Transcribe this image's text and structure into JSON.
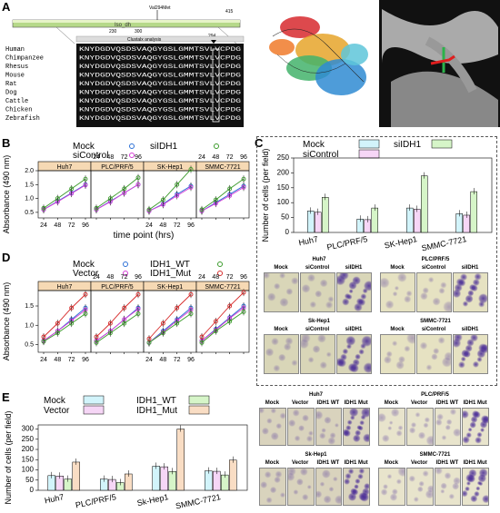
{
  "panels": {
    "A": "A",
    "B": "B",
    "C": "C",
    "D": "D",
    "E": "E"
  },
  "panel_a": {
    "domain_label": "Iso_dh",
    "mutation_label": "Val294Met",
    "length_label": "415",
    "pos_start": "230",
    "pos_mid": "300",
    "pos_end": "294",
    "clustal_title": "Clustalx analysis",
    "species": [
      "Human",
      "Chimpanzee",
      "Rhesus",
      "Mouse",
      "Rat",
      "Dog",
      "Cattle",
      "Chicken",
      "Zebrafish"
    ],
    "sequences": [
      "KNYDGDVQSDSVAQGYGSLGMMTSVLVCPDG",
      "KNYDGDVQSDSVAQGYGSLGMMTSVLVCPDG",
      "KNYDGDVQSDSVAQGYGSLGMMTSVLVCPDG",
      "KNYDGDVQSDSVAQGYGSLGMMTSVLVCPDG",
      "KNYDGDVQSDSVAQGYGSLGMMTSVLVCPDG",
      "KNYDGDVQSDSVAQGYGSLGMMTSVLVCPDG",
      "KNYDGDVQSDSVAQGYGSLGMMTSVLVCPDG",
      "KNYDGDVQSDSVAQGYGSLGMMTSVLVCPDG",
      "KNYDGDVQSDSVAQGYGSLGMMTSVLVCPDG"
    ]
  },
  "colors": {
    "mock": "#d2f4fb",
    "sicontrol": "#f6d6f6",
    "siidh1": "#d6f5c8",
    "idh1_mut": "#f9ddc4",
    "bar_stroke": "#000",
    "strip": "#f6d9b4",
    "line_a": "#2a6fd6",
    "line_b": "#d63cd6",
    "line_c": "#3a9a2a",
    "line_d": "#d62a2a"
  },
  "chart_data": [
    {
      "id": "B",
      "type": "line",
      "legend": [
        "Mock",
        "siControl",
        "siIDH1"
      ],
      "facets": [
        "Huh7",
        "PLC/PRF/5",
        "SK-Hep1",
        "SMMC-7721"
      ],
      "x": [
        "24",
        "48",
        "72",
        "96"
      ],
      "top_ticks": [
        "24",
        "48",
        "72",
        "96"
      ],
      "yticks": [
        "0.5",
        "1.0",
        "1.5",
        "2.0"
      ],
      "ylim": [
        0.3,
        2.0
      ],
      "xlabel": "time point (hrs)",
      "ylabel": "Absorbance (490 nm)",
      "series": [
        {
          "name": "Mock",
          "values": [
            [
              0.6,
              0.9,
              1.2,
              1.5
            ],
            [
              0.6,
              0.9,
              1.2,
              1.5
            ],
            [
              0.55,
              0.8,
              1.15,
              1.45
            ],
            [
              0.55,
              0.85,
              1.15,
              1.45
            ]
          ]
        },
        {
          "name": "siControl",
          "values": [
            [
              0.6,
              0.88,
              1.18,
              1.48
            ],
            [
              0.6,
              0.88,
              1.2,
              1.5
            ],
            [
              0.55,
              0.78,
              1.1,
              1.4
            ],
            [
              0.55,
              0.82,
              1.1,
              1.4
            ]
          ]
        },
        {
          "name": "siIDH1",
          "values": [
            [
              0.65,
              1.0,
              1.35,
              1.7
            ],
            [
              0.65,
              1.0,
              1.35,
              1.75
            ],
            [
              0.6,
              0.95,
              1.5,
              2.05
            ],
            [
              0.6,
              0.95,
              1.35,
              1.7
            ]
          ]
        }
      ]
    },
    {
      "id": "C",
      "type": "bar",
      "legend": [
        "Mock",
        "siControl",
        "siIDH1"
      ],
      "categories": [
        "Huh7",
        "PLC/PRF/5",
        "SK-Hep1",
        "SMMC-7721"
      ],
      "yticks": [
        "0",
        "50",
        "100",
        "150",
        "200",
        "250"
      ],
      "ylim": [
        0,
        250
      ],
      "ylabel": "Number of cells (per field)",
      "series": [
        {
          "name": "Mock",
          "values": [
            72,
            45,
            82,
            63
          ]
        },
        {
          "name": "siControl",
          "values": [
            68,
            43,
            78,
            58
          ]
        },
        {
          "name": "siIDH1",
          "values": [
            118,
            82,
            190,
            137
          ]
        }
      ]
    },
    {
      "id": "D",
      "type": "line",
      "legend": [
        "Mock",
        "Vector",
        "IDH1_WT",
        "IDH1_Mut"
      ],
      "facets": [
        "Huh7",
        "PLC/PRF/5",
        "SK-Hep1",
        "SMMC-7721"
      ],
      "x": [
        "24",
        "48",
        "72",
        "96"
      ],
      "top_ticks": [
        "24",
        "48",
        "72",
        "96"
      ],
      "yticks": [
        "0.5",
        "1.0",
        "1.5"
      ],
      "ylim": [
        0.3,
        1.9
      ],
      "ylabel": "Absorbance (490 nm)",
      "series": [
        {
          "name": "Mock",
          "values": [
            [
              0.6,
              0.85,
              1.15,
              1.45
            ],
            [
              0.6,
              0.85,
              1.15,
              1.45
            ],
            [
              0.55,
              0.85,
              1.15,
              1.45
            ],
            [
              0.6,
              0.9,
              1.2,
              1.5
            ]
          ]
        },
        {
          "name": "Vector",
          "values": [
            [
              0.6,
              0.85,
              1.12,
              1.4
            ],
            [
              0.6,
              0.85,
              1.15,
              1.42
            ],
            [
              0.55,
              0.82,
              1.12,
              1.4
            ],
            [
              0.6,
              0.88,
              1.18,
              1.45
            ]
          ]
        },
        {
          "name": "IDH1_WT",
          "values": [
            [
              0.58,
              0.8,
              1.05,
              1.3
            ],
            [
              0.55,
              0.8,
              1.05,
              1.3
            ],
            [
              0.55,
              0.8,
              1.05,
              1.3
            ],
            [
              0.55,
              0.85,
              1.1,
              1.35
            ]
          ]
        },
        {
          "name": "IDH1_Mut",
          "values": [
            [
              0.7,
              1.05,
              1.45,
              1.8
            ],
            [
              0.7,
              1.05,
              1.45,
              1.8
            ],
            [
              0.65,
              1.05,
              1.45,
              1.8
            ],
            [
              0.7,
              1.1,
              1.5,
              1.85
            ]
          ]
        }
      ]
    },
    {
      "id": "E",
      "type": "bar",
      "legend": [
        "Mock",
        "Vector",
        "IDH1_WT",
        "IDH1_Mut"
      ],
      "categories": [
        "Huh7",
        "PLC/PRF/5",
        "Sk-Hep1",
        "SMMC-7721"
      ],
      "yticks": [
        "0",
        "50",
        "100",
        "150",
        "200",
        "250",
        "300"
      ],
      "ylim": [
        0,
        320
      ],
      "ylabel": "Number of cells (per field)",
      "series": [
        {
          "name": "Mock",
          "values": [
            72,
            55,
            118,
            95
          ]
        },
        {
          "name": "Vector",
          "values": [
            70,
            53,
            115,
            93
          ]
        },
        {
          "name": "IDH1_WT",
          "values": [
            55,
            38,
            92,
            75
          ]
        },
        {
          "name": "IDH1_Mut",
          "values": [
            138,
            80,
            300,
            148
          ]
        }
      ]
    }
  ],
  "micro_c": {
    "groups": [
      {
        "title": "Huh7",
        "cols": [
          "Mock",
          "siControl",
          "siIDH1"
        ]
      },
      {
        "title": "PLC/PRF/5",
        "cols": [
          "Mock",
          "siControl",
          "siIDH1"
        ]
      },
      {
        "title": "Sk-Hep1",
        "cols": [
          "Mock",
          "siControl",
          "siIDH1"
        ]
      },
      {
        "title": "SMMC-7721",
        "cols": [
          "Mock",
          "siControl",
          "siIDH1"
        ]
      }
    ]
  },
  "micro_e": {
    "groups": [
      {
        "title": "Huh7",
        "cols": [
          "Mock",
          "Vector",
          "IDH1 WT",
          "IDH1 Mut"
        ]
      },
      {
        "title": "PLC/PRF/5",
        "cols": [
          "Mock",
          "Vector",
          "IDH1 WT",
          "IDH1 Mut"
        ]
      },
      {
        "title": "Sk-Hep1",
        "cols": [
          "Mock",
          "Vector",
          "IDH1 WT",
          "IDH1 Mut"
        ]
      },
      {
        "title": "SMMC-7721",
        "cols": [
          "Mock",
          "Vector",
          "IDH1 WT",
          "IDH1 Mut"
        ]
      }
    ]
  }
}
